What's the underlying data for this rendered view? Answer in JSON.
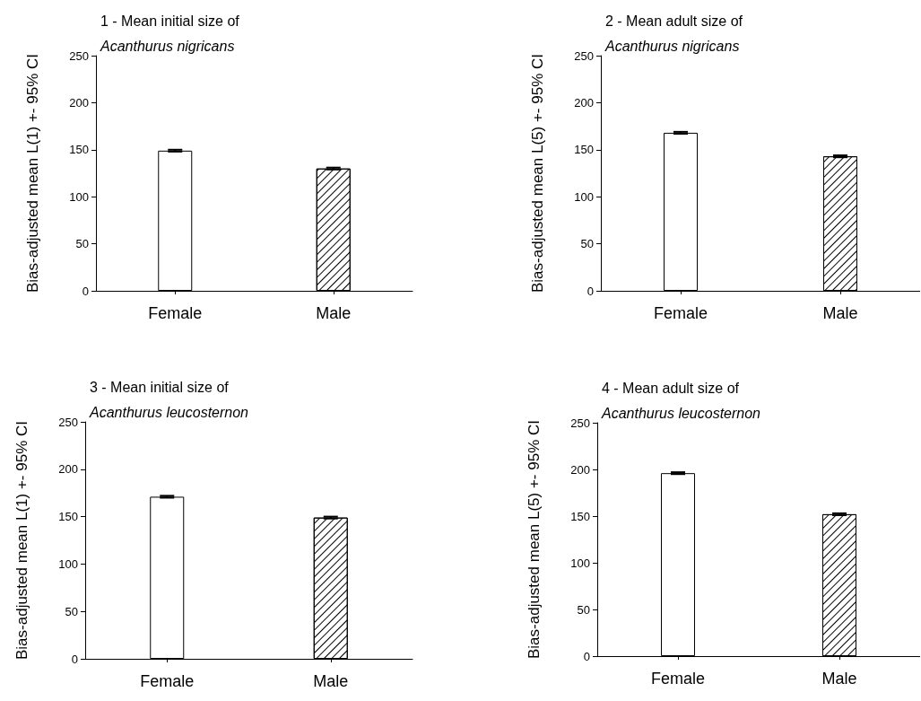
{
  "chart_data": [
    {
      "type": "bar",
      "title": "1 - Mean initial size of",
      "subtitle": "Acanthurus nigricans",
      "ylabel": "Bias-adjusted mean L(1) +- 95% CI",
      "categories": [
        "Female",
        "Male"
      ],
      "values": [
        149,
        130
      ],
      "errors": [
        1,
        1
      ],
      "colors": [
        "#ffffff",
        "#ffffff"
      ],
      "ylim": [
        0,
        250
      ],
      "yticks": [
        0,
        50,
        100,
        150,
        200,
        250
      ]
    },
    {
      "type": "bar",
      "title": "2 - Mean adult size of",
      "subtitle": "Acanthurus nigricans",
      "ylabel": "Bias-adjusted mean L(5) +- 95% CI",
      "categories": [
        "Female",
        "Male"
      ],
      "values": [
        168,
        143
      ],
      "errors": [
        1,
        1
      ],
      "colors": [
        "#ffffff",
        "#ffffff"
      ],
      "ylim": [
        0,
        250
      ],
      "yticks": [
        0,
        50,
        100,
        150,
        200,
        250
      ]
    },
    {
      "type": "bar",
      "title": "3 - Mean initial size of",
      "subtitle": "Acanthurus leucosternon",
      "ylabel": "Bias-adjusted mean L(1) +- 95% CI",
      "categories": [
        "Female",
        "Male"
      ],
      "values": [
        171,
        149
      ],
      "errors": [
        1,
        1
      ],
      "colors": [
        "#ffffff",
        "#ffffff"
      ],
      "ylim": [
        0,
        250
      ],
      "yticks": [
        0,
        50,
        100,
        150,
        200,
        250
      ]
    },
    {
      "type": "bar",
      "title": "4 - Mean adult size of",
      "subtitle": "Acanthurus leucosternon",
      "ylabel": "Bias-adjusted mean L(5) +- 95% CI",
      "categories": [
        "Female",
        "Male"
      ],
      "values": [
        196,
        152
      ],
      "errors": [
        1,
        1
      ],
      "colors": [
        "#ffffff",
        "#ffffff"
      ],
      "ylim": [
        0,
        250
      ],
      "yticks": [
        0,
        50,
        100,
        150,
        200,
        250
      ]
    }
  ]
}
